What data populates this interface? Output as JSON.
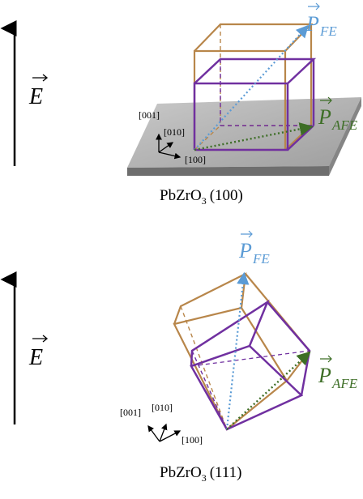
{
  "panels": [
    {
      "field_label": "E",
      "pfe_main": "P",
      "pfe_sub": "FE",
      "pafe_main": "P",
      "pafe_sub": "AFE",
      "axis_001": "[001]",
      "axis_010": "[010]",
      "axis_100": "[100]",
      "caption_formula": "PbZrO",
      "caption_sub": "3",
      "caption_orient": "(100)"
    },
    {
      "field_label": "E",
      "pfe_main": "P",
      "pfe_sub": "FE",
      "pafe_main": "P",
      "pafe_sub": "AFE",
      "axis_001": "[001]",
      "axis_010": "[010]",
      "axis_100": "[100]",
      "caption_formula": "PbZrO",
      "caption_sub": "3",
      "caption_orient": "(111)"
    }
  ],
  "colors": {
    "fe_vector": "#5b9bd5",
    "afe_vector": "#3d6e26",
    "fe_cell": "#b8864a",
    "afe_cell": "#7030a0",
    "substrate": "#a6a6a6"
  }
}
